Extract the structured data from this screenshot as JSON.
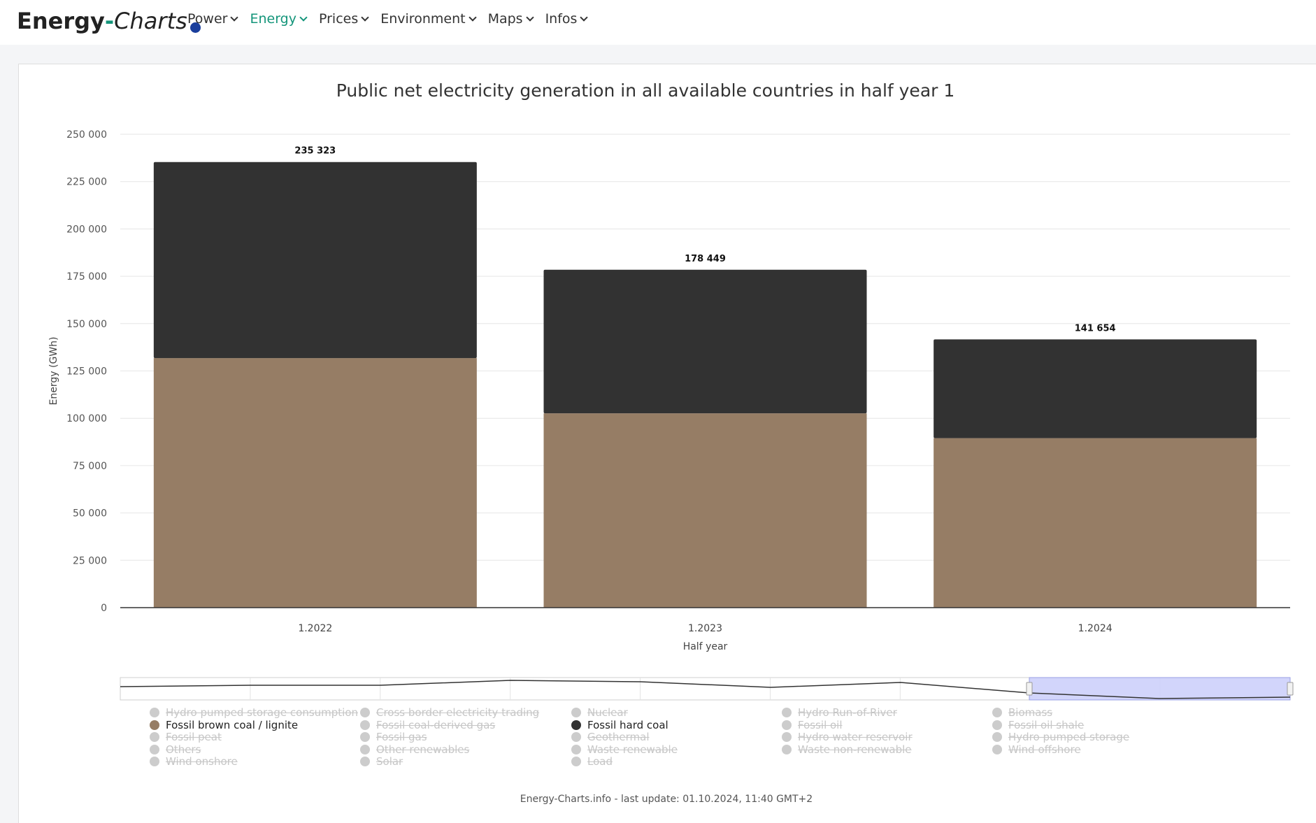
{
  "nav": {
    "logo": {
      "bold": "Energy",
      "dash": "-",
      "italic": "Charts"
    },
    "menu": [
      {
        "label": "Power",
        "active": false
      },
      {
        "label": "Energy",
        "active": true
      },
      {
        "label": "Prices",
        "active": false
      },
      {
        "label": "Environment",
        "active": false
      },
      {
        "label": "Maps",
        "active": false
      },
      {
        "label": "Infos",
        "active": false
      }
    ]
  },
  "colors": {
    "accent": "#14957a",
    "lignite": "#967d65",
    "hard_coal": "#323232",
    "navigator": "#cdd0fb"
  },
  "chart_data": {
    "type": "bar",
    "stacked": true,
    "title": "Public net electricity generation in all available countries in half year 1",
    "xlabel": "Half year",
    "ylabel": "Energy (GWh)",
    "ylim": [
      0,
      250000
    ],
    "yticks": [
      "0",
      "25 000",
      "50 000",
      "75 000",
      "100 000",
      "125 000",
      "150 000",
      "175 000",
      "200 000",
      "225 000",
      "250 000"
    ],
    "categories": [
      "1.2022",
      "1.2023",
      "1.2024"
    ],
    "series": [
      {
        "name": "Fossil brown coal / lignite",
        "color": "#967d65",
        "values": [
          131800,
          102600,
          89500
        ]
      },
      {
        "name": "Fossil hard coal",
        "color": "#323232",
        "values": [
          103523,
          75849,
          52154
        ]
      }
    ],
    "totals": [
      "235 323",
      "178 449",
      "141 654"
    ],
    "grid": true
  },
  "legend": [
    {
      "label": "Hydro pumped storage consumption",
      "active": false
    },
    {
      "label": "Fossil brown coal / lignite",
      "active": true,
      "color": "#967d65"
    },
    {
      "label": "Fossil peat",
      "active": false
    },
    {
      "label": "Others",
      "active": false
    },
    {
      "label": "Wind onshore",
      "active": false
    },
    {
      "label": "Cross border electricity trading",
      "active": false
    },
    {
      "label": "Fossil coal-derived gas",
      "active": false
    },
    {
      "label": "Fossil gas",
      "active": false
    },
    {
      "label": "Other renewables",
      "active": false
    },
    {
      "label": "Solar",
      "active": false
    },
    {
      "label": "Nuclear",
      "active": false
    },
    {
      "label": "Fossil hard coal",
      "active": true,
      "color": "#323232"
    },
    {
      "label": "Geothermal",
      "active": false
    },
    {
      "label": "Waste renewable",
      "active": false
    },
    {
      "label": "Load",
      "active": false
    },
    {
      "label": "Hydro Run-of-River",
      "active": false
    },
    {
      "label": "Fossil oil",
      "active": false
    },
    {
      "label": "Hydro water reservoir",
      "active": false
    },
    {
      "label": "Waste non-renewable",
      "active": false
    },
    {
      "label": "Biomass",
      "active": false
    },
    {
      "label": "Fossil oil shale",
      "active": false
    },
    {
      "label": "Hydro pumped storage",
      "active": false
    },
    {
      "label": "Wind offshore",
      "active": false
    }
  ],
  "footer": "Energy-Charts.info - last update: 01.10.2024, 11:40 GMT+2"
}
